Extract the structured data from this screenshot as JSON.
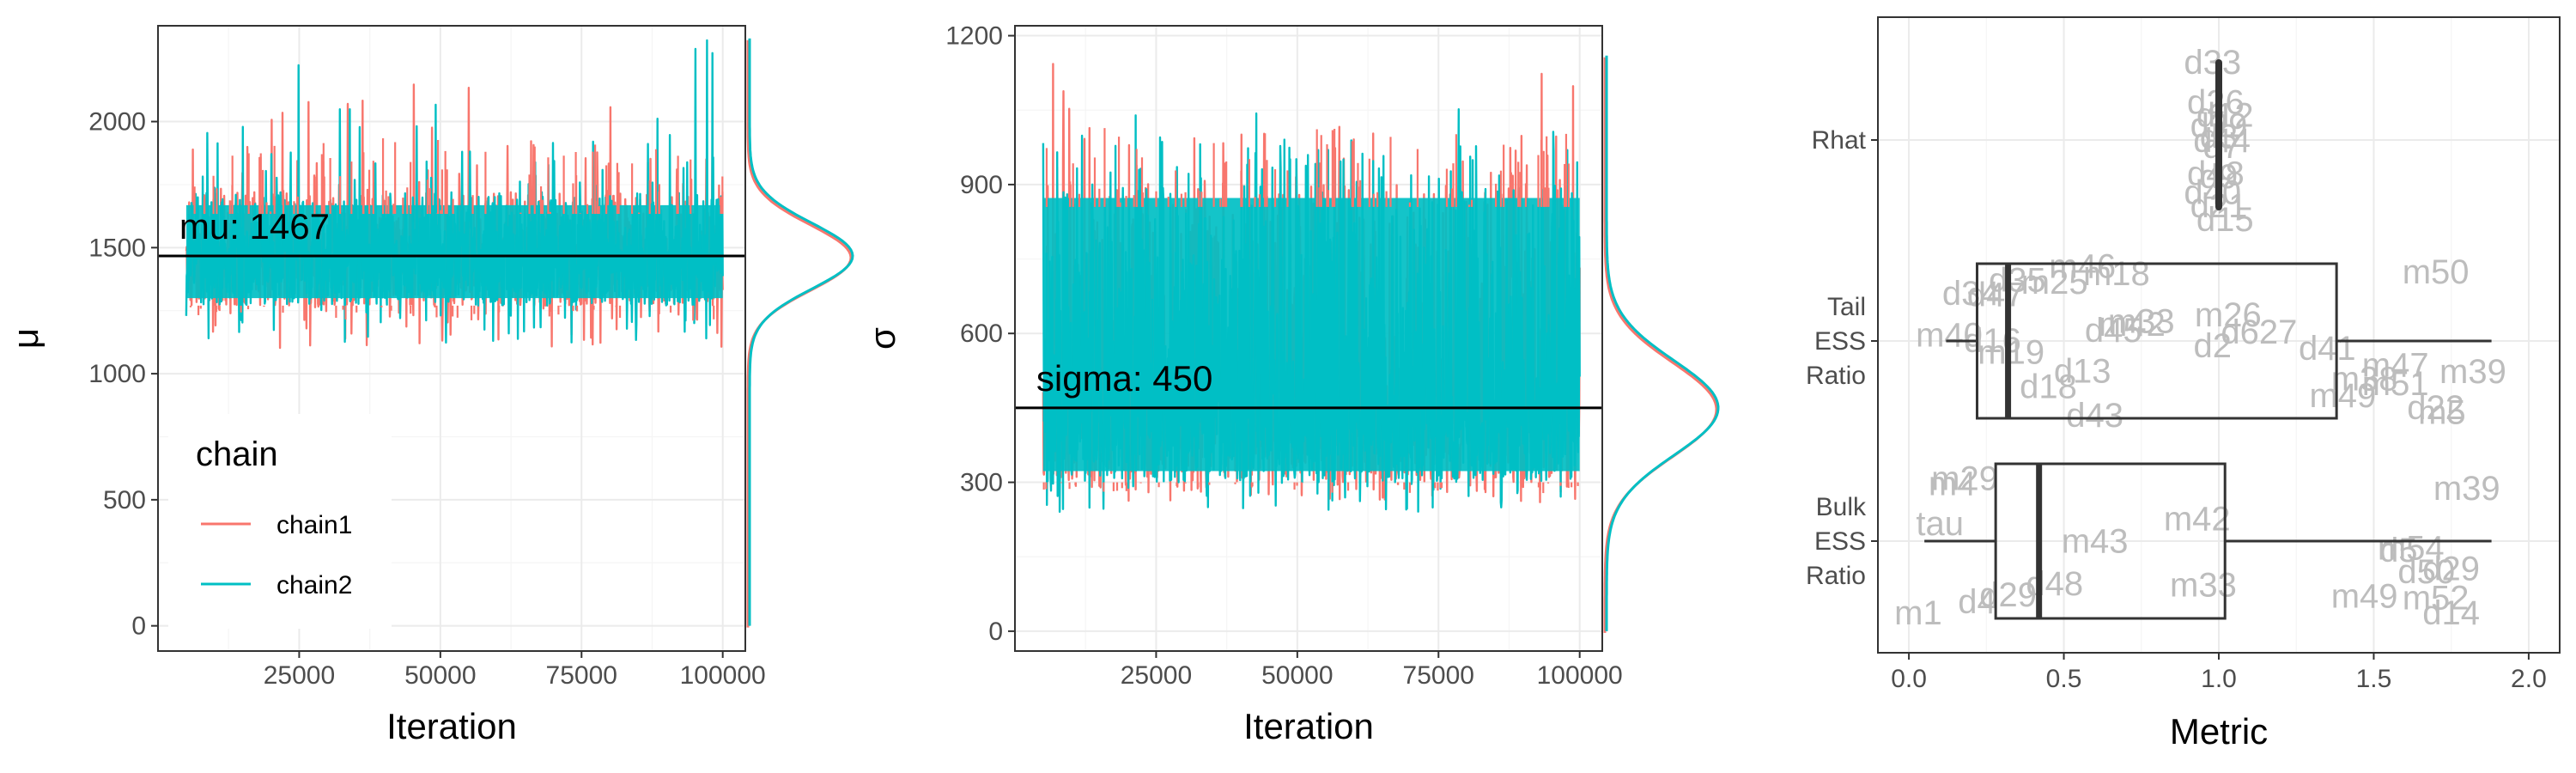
{
  "colors": {
    "chain1": "#F8766D",
    "chain2": "#00BFC4",
    "reference_line": "#000000",
    "panel_border": "#333333",
    "grid_major": "#ebebeb",
    "grid_minor": "#f5f5f5",
    "point_labels": "#bdbdbd",
    "boxplot": "#333333"
  },
  "chart_data": [
    {
      "type": "line",
      "chart_kind": "trace plot with marginal density",
      "xlabel": "Iteration",
      "ylabel": "μ",
      "xlim": [
        0,
        104000
      ],
      "ylim": [
        -100,
        2380
      ],
      "x_ticks": [
        25000,
        50000,
        75000,
        100000
      ],
      "x_tick_labels": [
        "25000",
        "50000",
        "75000",
        "100000"
      ],
      "y_ticks": [
        0,
        500,
        1000,
        1500,
        2000
      ],
      "y_tick_labels": [
        "0",
        "500",
        "1000",
        "1500",
        "2000"
      ],
      "grid": true,
      "iteration_range": [
        5000,
        100000
      ],
      "reference_line": {
        "y": 1467,
        "label": "mu: 1467"
      },
      "series": [
        {
          "name": "chain1",
          "center": 1467,
          "band_low": 1270,
          "band_high": 1720,
          "min": 1100,
          "max": 2150
        },
        {
          "name": "chain2",
          "center": 1467,
          "band_low": 1270,
          "band_high": 1720,
          "min": 1120,
          "max": 2330
        }
      ],
      "density": {
        "mode": 1467,
        "spread_sd": 130,
        "support": [
          0,
          2330
        ]
      },
      "legend": {
        "title": "chain",
        "position": "bottom-left inside",
        "entries": [
          "chain1",
          "chain2"
        ]
      }
    },
    {
      "type": "line",
      "chart_kind": "trace plot with marginal density",
      "xlabel": "Iteration",
      "ylabel": "σ",
      "xlim": [
        0,
        104000
      ],
      "ylim": [
        -40,
        1220
      ],
      "x_ticks": [
        25000,
        50000,
        75000,
        100000
      ],
      "x_tick_labels": [
        "25000",
        "50000",
        "75000",
        "100000"
      ],
      "y_ticks": [
        0,
        300,
        600,
        900,
        1200
      ],
      "y_tick_labels": [
        "0",
        "300",
        "600",
        "900",
        "1200"
      ],
      "grid": true,
      "iteration_range": [
        5000,
        100000
      ],
      "reference_line": {
        "y": 450,
        "label": "sigma: 450"
      },
      "series": [
        {
          "name": "chain1",
          "center": 450,
          "band_low": 300,
          "band_high": 900,
          "min": 260,
          "max": 1160
        },
        {
          "name": "chain2",
          "center": 450,
          "band_low": 300,
          "band_high": 900,
          "min": 240,
          "max": 1090
        }
      ],
      "density": {
        "mode": 450,
        "spread_sd": 95,
        "support": [
          0,
          1160
        ]
      }
    },
    {
      "type": "box",
      "chart_kind": "boxplot with jittered point labels",
      "xlabel": "Metric",
      "ylabel": "",
      "xlim": [
        -0.1,
        2.1
      ],
      "x_ticks": [
        0.0,
        0.5,
        1.0,
        1.5,
        2.0
      ],
      "x_tick_labels": [
        "0.0",
        "0.5",
        "1.0",
        "1.5",
        "2.0"
      ],
      "grid": true,
      "categories": [
        "Rhat",
        "Tail ESS Ratio",
        "Bulk ESS Ratio"
      ],
      "category_label_lines": [
        [
          "Rhat"
        ],
        [
          "Tail",
          "ESS",
          "Ratio"
        ],
        [
          "Bulk",
          "ESS",
          "Ratio"
        ]
      ],
      "boxes": [
        {
          "category": "Rhat",
          "whisker_low": 0.999,
          "q1": 1.0,
          "median": 1.0,
          "q3": 1.0,
          "whisker_high": 1.001
        },
        {
          "category": "Tail ESS Ratio",
          "whisker_low": 0.12,
          "q1": 0.22,
          "median": 0.32,
          "q3": 1.38,
          "whisker_high": 1.88
        },
        {
          "category": "Bulk ESS Ratio",
          "whisker_low": 0.05,
          "q1": 0.28,
          "median": 0.42,
          "q3": 1.02,
          "whisker_high": 1.88
        }
      ],
      "point_labels": [
        {
          "category": "Rhat",
          "text": "d21",
          "x": 1.0
        },
        {
          "category": "Rhat",
          "text": "d33",
          "x": 0.98
        },
        {
          "category": "Rhat",
          "text": "d12",
          "x": 1.02
        },
        {
          "category": "Rhat",
          "text": "d48",
          "x": 0.99
        },
        {
          "category": "Rhat",
          "text": "d7",
          "x": 1.01
        },
        {
          "category": "Rhat",
          "text": "d29",
          "x": 1.0
        },
        {
          "category": "Rhat",
          "text": "d40",
          "x": 0.98
        },
        {
          "category": "Rhat",
          "text": "d15",
          "x": 1.02
        },
        {
          "category": "Rhat",
          "text": "d3",
          "x": 1.0
        },
        {
          "category": "Rhat",
          "text": "d26",
          "x": 0.99
        },
        {
          "category": "Rhat",
          "text": "d44",
          "x": 1.01
        },
        {
          "category": "Rhat",
          "text": "d9",
          "x": 1.0
        },
        {
          "category": "Tail ESS Ratio",
          "text": "m40",
          "x": 0.13
        },
        {
          "category": "Tail ESS Ratio",
          "text": "d16",
          "x": 0.27
        },
        {
          "category": "Tail ESS Ratio",
          "text": "m19",
          "x": 0.33
        },
        {
          "category": "Tail ESS Ratio",
          "text": "d13",
          "x": 0.56
        },
        {
          "category": "Tail ESS Ratio",
          "text": "m42",
          "x": 0.72
        },
        {
          "category": "Tail ESS Ratio",
          "text": "d18",
          "x": 0.45
        },
        {
          "category": "Tail ESS Ratio",
          "text": "d43",
          "x": 0.6
        },
        {
          "category": "Tail ESS Ratio",
          "text": "m33",
          "x": 0.75
        },
        {
          "category": "Tail ESS Ratio",
          "text": "m25",
          "x": 0.47
        },
        {
          "category": "Tail ESS Ratio",
          "text": "m18",
          "x": 0.67
        },
        {
          "category": "Tail ESS Ratio",
          "text": "d2",
          "x": 0.98
        },
        {
          "category": "Tail ESS Ratio",
          "text": "d627",
          "x": 1.13
        },
        {
          "category": "Tail ESS Ratio",
          "text": "m46",
          "x": 0.56
        },
        {
          "category": "Tail ESS Ratio",
          "text": "d45",
          "x": 0.66
        },
        {
          "category": "Tail ESS Ratio",
          "text": "m26",
          "x": 1.03
        },
        {
          "category": "Tail ESS Ratio",
          "text": "d41",
          "x": 1.35
        },
        {
          "category": "Tail ESS Ratio",
          "text": "m49",
          "x": 1.4
        },
        {
          "category": "Tail ESS Ratio",
          "text": "m51",
          "x": 1.57
        },
        {
          "category": "Tail ESS Ratio",
          "text": "m5",
          "x": 1.72
        },
        {
          "category": "Tail ESS Ratio",
          "text": "m50",
          "x": 1.7
        },
        {
          "category": "Tail ESS Ratio",
          "text": "m38",
          "x": 1.47
        },
        {
          "category": "Tail ESS Ratio",
          "text": "m39",
          "x": 1.82
        },
        {
          "category": "Tail ESS Ratio",
          "text": "m47",
          "x": 1.57
        },
        {
          "category": "Tail ESS Ratio",
          "text": "d22",
          "x": 1.7
        },
        {
          "category": "Tail ESS Ratio",
          "text": "d47",
          "x": 0.28
        },
        {
          "category": "Tail ESS Ratio",
          "text": "d35",
          "x": 0.35
        },
        {
          "category": "Tail ESS Ratio",
          "text": "d34",
          "x": 0.2
        },
        {
          "category": "Bulk ESS Ratio",
          "text": "m29",
          "x": 0.18
        },
        {
          "category": "Bulk ESS Ratio",
          "text": "m43",
          "x": 0.6
        },
        {
          "category": "Bulk ESS Ratio",
          "text": "d4",
          "x": 0.22
        },
        {
          "category": "Bulk ESS Ratio",
          "text": "m42",
          "x": 0.93
        },
        {
          "category": "Bulk ESS Ratio",
          "text": "m33",
          "x": 0.95
        },
        {
          "category": "Bulk ESS Ratio",
          "text": "m1",
          "x": 0.03
        },
        {
          "category": "Bulk ESS Ratio",
          "text": "tau",
          "x": 0.1
        },
        {
          "category": "Bulk ESS Ratio",
          "text": "m4",
          "x": 0.14
        },
        {
          "category": "Bulk ESS Ratio",
          "text": "d48",
          "x": 0.47
        },
        {
          "category": "Bulk ESS Ratio",
          "text": "d29",
          "x": 0.32
        },
        {
          "category": "Bulk ESS Ratio",
          "text": "d5",
          "x": 1.58
        },
        {
          "category": "Bulk ESS Ratio",
          "text": "d14",
          "x": 1.75
        },
        {
          "category": "Bulk ESS Ratio",
          "text": "m54",
          "x": 1.62
        },
        {
          "category": "Bulk ESS Ratio",
          "text": "m52",
          "x": 1.7
        },
        {
          "category": "Bulk ESS Ratio",
          "text": "m39",
          "x": 1.8
        },
        {
          "category": "Bulk ESS Ratio",
          "text": "m49",
          "x": 1.47
        },
        {
          "category": "Bulk ESS Ratio",
          "text": "d50",
          "x": 1.67
        },
        {
          "category": "Bulk ESS Ratio",
          "text": "d29",
          "x": 1.75
        }
      ]
    }
  ]
}
